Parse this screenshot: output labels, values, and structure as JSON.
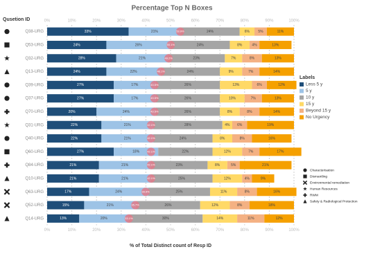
{
  "chart_data": {
    "type": "stacked-barh",
    "title": "Percentage Top N Boxes",
    "y_title": "Qusetion ID",
    "x_title": "% of Total Distinct count of Resp ID",
    "legend_title": "Labels",
    "categories": [
      "Q38-URG",
      "Q53-URG",
      "Q32-URG",
      "Q13-URG",
      "Q39-URG",
      "Q37-URG",
      "Q70-URG",
      "Q31-URG",
      "Q40-URG",
      "Q60-URG",
      "Q84-URG",
      "Q10-URG",
      "Q63-URG",
      "Q52-URG",
      "Q14-URG"
    ],
    "series": [
      {
        "name": "Less 5 y",
        "color": "#1f4e79",
        "values": [
          33,
          24,
          28,
          24,
          27,
          27,
          20,
          22,
          22,
          27,
          21,
          21,
          17,
          15,
          13
        ],
        "value_labels": [
          "33%",
          "24%",
          "28%",
          "24%",
          "27%",
          "27%",
          "20%",
          "22%",
          "22%",
          "27%",
          "21%",
          "21%",
          "17%",
          "15%",
          "13%"
        ]
      },
      {
        "name": "5 y",
        "color": "#9dc3e6",
        "values": [
          21,
          26,
          21,
          22,
          17,
          17,
          24,
          21,
          21,
          18,
          21,
          21,
          24,
          21,
          20
        ],
        "value_labels": [
          "21%",
          "26%",
          "21%",
          "22%",
          "17%",
          "17%",
          "24%",
          "21%",
          "21%",
          "18%",
          "21%",
          "21%",
          "24%",
          "21%",
          "20%"
        ]
      },
      {
        "name": "10 y",
        "color": "#a5a5a5",
        "values": [
          24,
          24,
          23,
          24,
          26,
          26,
          26,
          28,
          24,
          22,
          23,
          25,
          25,
          26,
          30
        ],
        "value_labels": [
          "24%",
          "24%",
          "23%",
          "24%",
          "26%",
          "26%",
          "26%",
          "28%",
          "24%",
          "22%",
          "23%",
          "25%",
          "25%",
          "26%",
          "30%"
        ]
      },
      {
        "name": "15 y",
        "color": "#ffd966",
        "values": [
          6,
          8,
          7,
          9,
          13,
          10,
          8,
          4,
          8,
          12,
          8,
          12,
          11,
          12,
          14
        ],
        "value_labels": [
          "6%",
          "8%",
          "7%",
          "9%",
          "13%",
          "10%",
          "8%",
          "4%",
          "8%",
          "12%",
          "8%",
          "12%",
          "11%",
          "12%",
          "14%"
        ]
      },
      {
        "name": "Beyond 15 y",
        "color": "#f4b183",
        "values": [
          5,
          4,
          8,
          7,
          6,
          7,
          8,
          6,
          8,
          7,
          5,
          4,
          8,
          8,
          11
        ],
        "value_labels": [
          "5%",
          "4%",
          "8%",
          "7%",
          "6%",
          "7%",
          "8%",
          "6%",
          "8%",
          "7%",
          "5%",
          "4%",
          "8%",
          "8%",
          "11%"
        ]
      },
      {
        "name": "No Urgency",
        "color": "#f5a000",
        "values": [
          11,
          13,
          13,
          14,
          12,
          13,
          14,
          19,
          16,
          17,
          21,
          9,
          16,
          18,
          12
        ],
        "value_labels": [
          "11%",
          "13%",
          "13%",
          "14%",
          "12%",
          "13%",
          "14%",
          "19%",
          "16%",
          "17%",
          "21%",
          "9%",
          "16%",
          "18%",
          "12%"
        ]
      }
    ],
    "markers": {
      "color": "#e07b8a",
      "values": [
        53.9,
        50.1,
        49.2,
        46.1,
        43.5,
        43.5,
        43.5,
        42.1,
        42.1,
        42.1,
        42.1,
        42.1,
        39.9,
        35.7,
        33.1
      ],
      "value_labels": [
        "53.9%",
        "50.1%",
        "49.2%",
        "46.1%",
        "43.5%",
        "43.5%",
        "43.5%",
        "42.1%",
        "42.1%",
        "42.1%",
        "42.1%",
        "42.1%",
        "39.9%",
        "35.7%",
        "33.1%"
      ]
    },
    "groups": [
      {
        "name": "Characterisation",
        "shape": "circle"
      },
      {
        "name": "Dismantling",
        "shape": "square"
      },
      {
        "name": "Environmental remediation",
        "shape": "x"
      },
      {
        "name": "Human Resources",
        "shape": "star"
      },
      {
        "name": "RWM",
        "shape": "plus"
      },
      {
        "name": "Safety & Radiological Protection",
        "shape": "triangle"
      }
    ],
    "row_groups": [
      0,
      1,
      3,
      5,
      0,
      0,
      4,
      3,
      0,
      1,
      4,
      5,
      2,
      2,
      5
    ],
    "xlim": [
      0,
      100
    ],
    "xticks": [
      {
        "value": 0,
        "label": "0%"
      },
      {
        "value": 10,
        "label": "10%"
      },
      {
        "value": 20,
        "label": "20%"
      },
      {
        "value": 30,
        "label": "30%"
      },
      {
        "value": 40,
        "label": "40%"
      },
      {
        "value": 50,
        "label": "50%"
      },
      {
        "value": 60,
        "label": "60%"
      },
      {
        "value": 70,
        "label": "70%"
      },
      {
        "value": 80,
        "label": "80%"
      },
      {
        "value": 90,
        "label": "90%"
      },
      {
        "value": 100,
        "label": "100%"
      }
    ],
    "grid": true
  }
}
